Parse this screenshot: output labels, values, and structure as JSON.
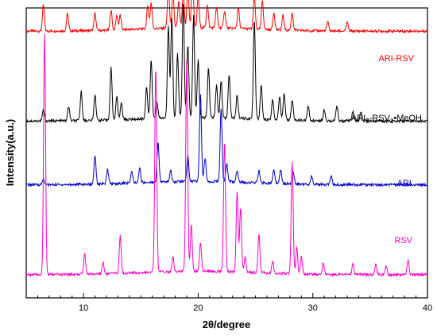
{
  "chart_data": {
    "type": "line",
    "xlabel": "2θ/degree",
    "ylabel": "Intensity(a.u.)",
    "xlim": [
      5,
      40
    ],
    "x_ticks": [
      10,
      20,
      30,
      40
    ],
    "y_ticks_shown": false,
    "grid": false,
    "legend": "inline labels at right of each trace",
    "series": [
      {
        "name": "ARI-RSV",
        "color": "#ff0000",
        "baseline": 0.92,
        "peaks": [
          [
            6.5,
            0.09
          ],
          [
            8.6,
            0.06
          ],
          [
            11.0,
            0.06
          ],
          [
            12.4,
            0.07
          ],
          [
            12.9,
            0.05
          ],
          [
            13.2,
            0.05
          ],
          [
            15.6,
            0.08
          ],
          [
            15.9,
            0.09
          ],
          [
            17.4,
            0.15
          ],
          [
            17.8,
            0.12
          ],
          [
            18.3,
            0.09
          ],
          [
            18.7,
            0.12
          ],
          [
            19.1,
            0.14
          ],
          [
            19.5,
            0.2
          ],
          [
            20.0,
            0.11
          ],
          [
            20.8,
            0.08
          ],
          [
            21.6,
            0.07
          ],
          [
            22.3,
            0.06
          ],
          [
            23.5,
            0.07
          ],
          [
            24.9,
            0.11
          ],
          [
            25.6,
            0.1
          ],
          [
            26.6,
            0.06
          ],
          [
            27.4,
            0.05
          ],
          [
            28.2,
            0.06
          ],
          [
            31.3,
            0.03
          ],
          [
            33.0,
            0.03
          ]
        ]
      },
      {
        "name": "ARI2-RSV1•MeOH",
        "label_main": "ARI",
        "label_sub1": "2",
        "label_mid": "-RSV",
        "label_sub2": "1",
        "label_end": "•MeOH",
        "color": "#000000",
        "baseline": 0.61,
        "peaks": [
          [
            6.5,
            0.04
          ],
          [
            8.7,
            0.05
          ],
          [
            9.8,
            0.1
          ],
          [
            11.0,
            0.09
          ],
          [
            12.4,
            0.18
          ],
          [
            12.9,
            0.08
          ],
          [
            13.3,
            0.06
          ],
          [
            15.5,
            0.11
          ],
          [
            15.9,
            0.2
          ],
          [
            16.4,
            0.06
          ],
          [
            17.4,
            0.32
          ],
          [
            17.7,
            0.35
          ],
          [
            18.2,
            0.22
          ],
          [
            18.7,
            0.4
          ],
          [
            19.1,
            0.25
          ],
          [
            19.6,
            0.35
          ],
          [
            20.0,
            0.2
          ],
          [
            20.9,
            0.17
          ],
          [
            21.6,
            0.11
          ],
          [
            22.0,
            0.13
          ],
          [
            22.7,
            0.15
          ],
          [
            23.4,
            0.08
          ],
          [
            24.9,
            0.34
          ],
          [
            25.5,
            0.12
          ],
          [
            26.5,
            0.07
          ],
          [
            27.1,
            0.08
          ],
          [
            27.5,
            0.09
          ],
          [
            28.2,
            0.07
          ],
          [
            29.6,
            0.05
          ],
          [
            31.0,
            0.04
          ],
          [
            32.1,
            0.05
          ],
          [
            33.5,
            0.03
          ],
          [
            34.2,
            0.03
          ]
        ]
      },
      {
        "name": "ARI",
        "color": "#0000cc",
        "baseline": 0.39,
        "peaks": [
          [
            6.5,
            0.02
          ],
          [
            11.0,
            0.1
          ],
          [
            12.1,
            0.05
          ],
          [
            14.2,
            0.04
          ],
          [
            14.9,
            0.05
          ],
          [
            16.5,
            0.14
          ],
          [
            17.6,
            0.04
          ],
          [
            19.1,
            0.09
          ],
          [
            20.2,
            0.3
          ],
          [
            20.6,
            0.08
          ],
          [
            22.0,
            0.25
          ],
          [
            22.5,
            0.06
          ],
          [
            23.4,
            0.04
          ],
          [
            25.3,
            0.04
          ],
          [
            26.6,
            0.05
          ],
          [
            27.2,
            0.05
          ],
          [
            28.3,
            0.04
          ],
          [
            29.9,
            0.03
          ],
          [
            31.6,
            0.03
          ]
        ]
      },
      {
        "name": "RSV",
        "color": "#ff00cc",
        "baseline": 0.08,
        "peaks": [
          [
            6.6,
            0.83
          ],
          [
            10.1,
            0.07
          ],
          [
            11.7,
            0.04
          ],
          [
            13.2,
            0.13
          ],
          [
            16.3,
            0.71
          ],
          [
            17.8,
            0.05
          ],
          [
            19.0,
            0.73
          ],
          [
            19.4,
            0.16
          ],
          [
            20.2,
            0.1
          ],
          [
            22.3,
            0.45
          ],
          [
            23.4,
            0.28
          ],
          [
            23.7,
            0.22
          ],
          [
            24.1,
            0.05
          ],
          [
            25.3,
            0.13
          ],
          [
            26.5,
            0.04
          ],
          [
            28.2,
            0.39
          ],
          [
            28.6,
            0.09
          ],
          [
            29.0,
            0.06
          ],
          [
            30.9,
            0.04
          ],
          [
            33.5,
            0.04
          ],
          [
            35.5,
            0.04
          ],
          [
            36.4,
            0.03
          ],
          [
            38.3,
            0.05
          ]
        ]
      }
    ]
  }
}
